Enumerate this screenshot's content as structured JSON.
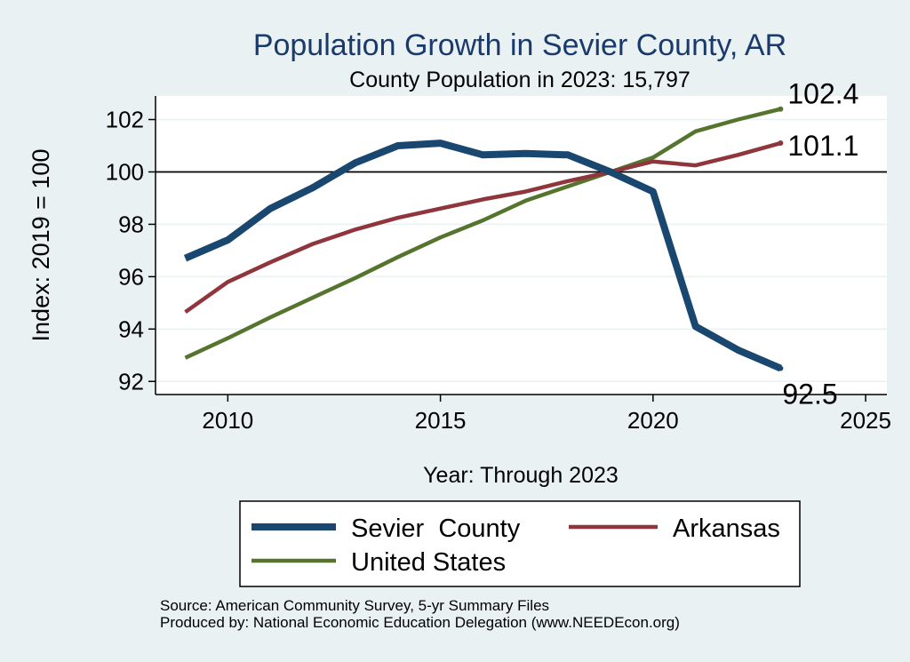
{
  "chart_data": {
    "type": "line",
    "title": "Population Growth in Sevier County, AR",
    "subtitle": "County Population in 2023: 15,797",
    "xlabel": "Year: Through 2023",
    "ylabel": "Index: 2019 = 100",
    "xlim": [
      2008.3,
      2025.5
    ],
    "ylim": [
      91.5,
      102.9
    ],
    "xticks": [
      2010,
      2015,
      2020,
      2025
    ],
    "yticks": [
      92,
      94,
      96,
      98,
      100,
      102
    ],
    "reference_line_y": 100,
    "grid": true,
    "x": [
      2009,
      2010,
      2011,
      2012,
      2013,
      2014,
      2015,
      2016,
      2017,
      2018,
      2019,
      2020,
      2021,
      2022,
      2023
    ],
    "series": [
      {
        "name": "Sevier  County",
        "color": "#1a476f",
        "values": [
          96.7,
          97.4,
          98.6,
          99.4,
          100.35,
          101.0,
          101.1,
          100.65,
          100.7,
          100.65,
          100.0,
          99.25,
          94.1,
          93.2,
          92.5
        ],
        "end_label": "92.5"
      },
      {
        "name": "Arkansas",
        "color": "#90353b",
        "values": [
          94.65,
          95.8,
          96.55,
          97.25,
          97.8,
          98.25,
          98.6,
          98.95,
          99.25,
          99.65,
          100.0,
          100.4,
          100.25,
          100.65,
          101.1
        ],
        "end_label": "101.1"
      },
      {
        "name": "United States",
        "color": "#55752f",
        "values": [
          92.9,
          93.65,
          94.45,
          95.2,
          95.95,
          96.75,
          97.5,
          98.15,
          98.9,
          99.45,
          100.0,
          100.55,
          101.55,
          102.0,
          102.4
        ],
        "end_label": "102.4"
      }
    ],
    "legend": {
      "placement": "bottom",
      "entries": [
        "Sevier  County",
        "Arkansas",
        "United States"
      ]
    }
  },
  "footer": {
    "source": "Source: American Community Survey, 5-yr Summary Files",
    "produced_by": "Produced by: National Economic Education Delegation (www.NEEDEcon.org)"
  }
}
